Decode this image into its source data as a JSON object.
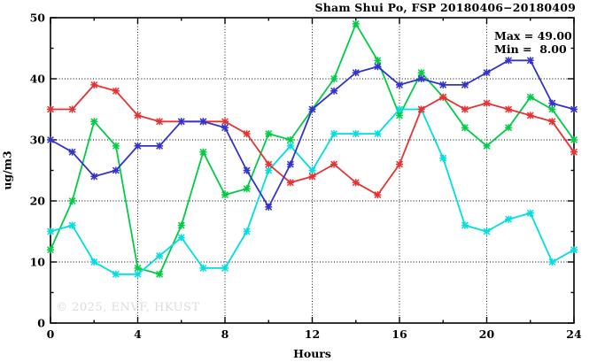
{
  "chart_data": {
    "type": "line",
    "title": "Sham Shui Po, FSP 20180406−20180409",
    "xlabel": "Hours",
    "ylabel": "ug/m3",
    "xlim": [
      0,
      24
    ],
    "ylim": [
      0,
      50
    ],
    "xticks_major": [
      0,
      4,
      8,
      12,
      16,
      20,
      24
    ],
    "xticks_minor": [
      2,
      6,
      10,
      14,
      18,
      22
    ],
    "yticks_major": [
      0,
      10,
      20,
      30,
      40,
      50
    ],
    "yticks_minor": [
      5,
      15,
      25,
      35,
      45
    ],
    "grid": "dotted lines at interior major ticks",
    "legend": "none",
    "x": [
      0,
      1,
      2,
      3,
      4,
      5,
      6,
      7,
      8,
      9,
      10,
      11,
      12,
      13,
      14,
      15,
      16,
      17,
      18,
      19,
      20,
      21,
      22,
      23,
      24
    ],
    "series": [
      {
        "name": "green-series",
        "color": "#00cc44",
        "values": [
          12,
          20,
          33,
          29,
          9,
          8,
          16,
          28,
          21,
          22,
          31,
          30,
          35,
          40,
          49,
          43,
          34,
          41,
          37,
          32,
          29,
          32,
          37,
          35,
          30
        ]
      },
      {
        "name": "cyan-series",
        "color": "#00dede",
        "values": [
          15,
          16,
          10,
          8,
          8,
          11,
          14,
          9,
          9,
          15,
          25,
          29,
          25,
          31,
          31,
          31,
          35,
          35,
          27,
          16,
          15,
          17,
          18,
          10,
          12
        ]
      },
      {
        "name": "red-series",
        "color": "#e63232",
        "values": [
          35,
          35,
          39,
          38,
          34,
          33,
          33,
          33,
          33,
          31,
          26,
          23,
          24,
          26,
          23,
          21,
          26,
          35,
          37,
          35,
          36,
          35,
          34,
          33,
          28
        ]
      },
      {
        "name": "blue-series",
        "color": "#3333cc",
        "values": [
          30,
          28,
          24,
          25,
          29,
          29,
          33,
          33,
          32,
          25,
          19,
          26,
          35,
          38,
          41,
          42,
          39,
          40,
          39,
          39,
          41,
          43,
          43,
          36,
          35
        ]
      }
    ],
    "annotations": {
      "max_label": "Max = 49.00",
      "min_label": "Min =  8.00"
    },
    "watermark": "© 2025, ENVF, HKUST"
  }
}
